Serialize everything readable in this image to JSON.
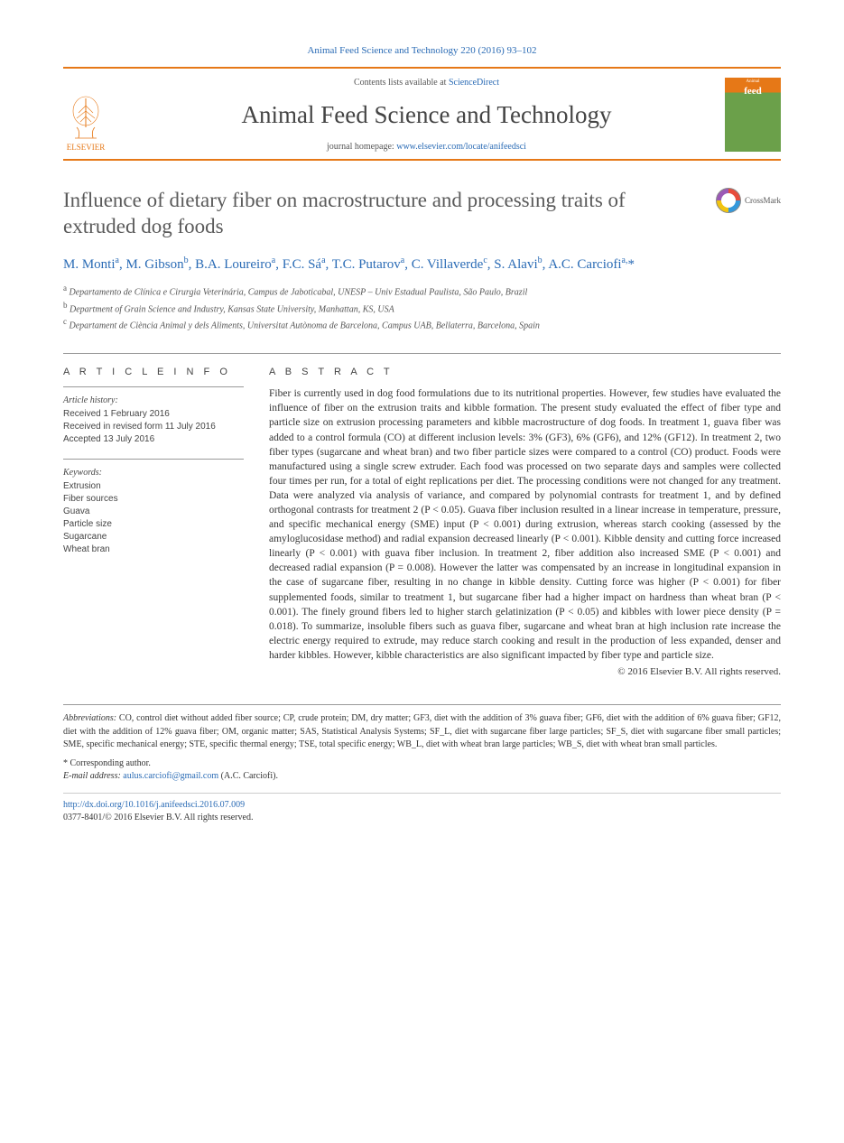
{
  "citation": "Animal Feed Science and Technology 220 (2016) 93–102",
  "header": {
    "contents_prefix": "Contents lists available at ",
    "contents_link": "ScienceDirect",
    "journal_name": "Animal Feed Science and Technology",
    "homepage_prefix": "journal homepage: ",
    "homepage_url": "www.elsevier.com/locate/anifeedsci",
    "publisher": "ELSEVIER",
    "cover_label_top": "Animal",
    "cover_label_main": "feed"
  },
  "crossmark_label": "CrossMark",
  "title": "Influence of dietary fiber on macrostructure and processing traits of extruded dog foods",
  "authors_html": "M. Monti<sup>a</sup>, M. Gibson<sup>b</sup>, B.A. Loureiro<sup>a</sup>, F.C. Sá<sup>a</sup>, T.C. Putarov<sup>a</sup>, C. Villaverde<sup>c</sup>, S. Alavi<sup>b</sup>, A.C. Carciofi<sup>a,</sup>*",
  "affiliations": [
    {
      "sup": "a",
      "text": "Departamento de Clínica e Cirurgia Veterinária, Campus de Jaboticabal, UNESP – Univ Estadual Paulista, São Paulo, Brazil"
    },
    {
      "sup": "b",
      "text": "Department of Grain Science and Industry, Kansas State University, Manhattan, KS, USA"
    },
    {
      "sup": "c",
      "text": "Departament de Ciència Animal y dels Aliments, Universitat Autònoma de Barcelona, Campus UAB, Bellaterra, Barcelona, Spain"
    }
  ],
  "article_info_heading": "A R T I C L E   I N F O",
  "abstract_heading": "A B S T R A C T",
  "history_heading": "Article history:",
  "history": [
    "Received 1 February 2016",
    "Received in revised form 11 July 2016",
    "Accepted 13 July 2016"
  ],
  "keywords_heading": "Keywords:",
  "keywords": [
    "Extrusion",
    "Fiber sources",
    "Guava",
    "Particle size",
    "Sugarcane",
    "Wheat bran"
  ],
  "abstract": "Fiber is currently used in dog food formulations due to its nutritional properties. However, few studies have evaluated the influence of fiber on the extrusion traits and kibble formation. The present study evaluated the effect of fiber type and particle size on extrusion processing parameters and kibble macrostructure of dog foods. In treatment 1, guava fiber was added to a control formula (CO) at different inclusion levels: 3% (GF3), 6% (GF6), and 12% (GF12). In treatment 2, two fiber types (sugarcane and wheat bran) and two fiber particle sizes were compared to a control (CO) product. Foods were manufactured using a single screw extruder. Each food was processed on two separate days and samples were collected four times per run, for a total of eight replications per diet. The processing conditions were not changed for any treatment. Data were analyzed via analysis of variance, and compared by polynomial contrasts for treatment 1, and by defined orthogonal contrasts for treatment 2 (P < 0.05). Guava fiber inclusion resulted in a linear increase in temperature, pressure, and specific mechanical energy (SME) input (P < 0.001) during extrusion, whereas starch cooking (assessed by the amyloglucosidase method) and radial expansion decreased linearly (P < 0.001). Kibble density and cutting force increased linearly (P < 0.001) with guava fiber inclusion. In treatment 2, fiber addition also increased SME (P < 0.001) and decreased radial expansion (P = 0.008). However the latter was compensated by an increase in longitudinal expansion in the case of sugarcane fiber, resulting in no change in kibble density. Cutting force was higher (P < 0.001) for fiber supplemented foods, similar to treatment 1, but sugarcane fiber had a higher impact on hardness than wheat bran (P < 0.001). The finely ground fibers led to higher starch gelatinization (P < 0.05) and kibbles with lower piece density (P = 0.018). To summarize, insoluble fibers such as guava fiber, sugarcane and wheat bran at high inclusion rate increase the electric energy required to extrude, may reduce starch cooking and result in the production of less expanded, denser and harder kibbles. However, kibble characteristics are also significant impacted by fiber type and particle size.",
  "copyright": "© 2016 Elsevier B.V. All rights reserved.",
  "footer": {
    "abbrev_label": "Abbreviations:",
    "abbrev_text": " CO, control diet without added fiber source; CP, crude protein; DM, dry matter; GF3, diet with the addition of 3% guava fiber; GF6, diet with the addition of 6% guava fiber; GF12, diet with the addition of 12% guava fiber; OM, organic matter; SAS, Statistical Analysis Systems; SF_L, diet with sugarcane fiber large particles; SF_S, diet with sugarcane fiber small particles; SME, specific mechanical energy; STE, specific thermal energy; TSE, total specific energy; WB_L, diet with wheat bran large particles; WB_S, diet with wheat bran small particles.",
    "corresponding": "* Corresponding author.",
    "email_label": "E-mail address: ",
    "email": "aulus.carciofi@gmail.com",
    "email_suffix": " (A.C. Carciofi).",
    "doi": "http://dx.doi.org/10.1016/j.anifeedsci.2016.07.009",
    "issn": "0377-8401/© 2016 Elsevier B.V. All rights reserved."
  },
  "colors": {
    "accent_orange": "#e67817",
    "link_blue": "#2a6bb5",
    "text_gray": "#5a5a5a",
    "cover_green": "#6ba04a"
  }
}
